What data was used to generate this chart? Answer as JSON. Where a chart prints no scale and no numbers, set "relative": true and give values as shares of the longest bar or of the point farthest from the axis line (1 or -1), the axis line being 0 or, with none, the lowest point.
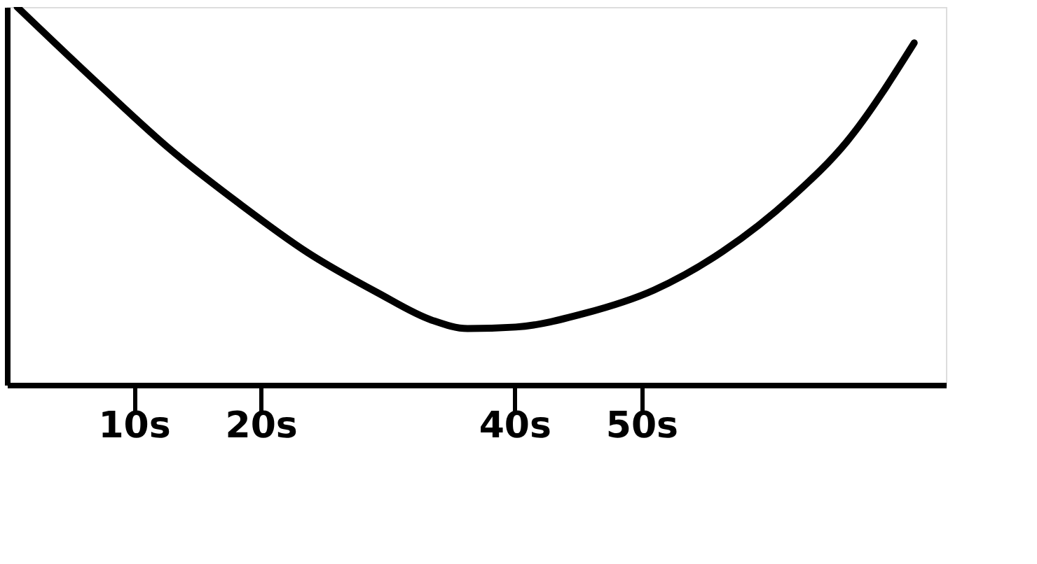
{
  "chart_data": {
    "type": "line",
    "relative": true,
    "x": [
      0.8,
      7.4,
      12.8,
      18.3,
      23.7,
      29.2,
      33.5,
      36.3,
      40.1,
      45.5,
      51.0,
      56.4,
      61.9,
      66.2,
      71.5
    ],
    "series": [
      {
        "color": "#000000",
        "values": [
          1.0,
          0.79,
          0.625,
          0.48,
          0.35,
          0.244,
          0.171,
          0.149,
          0.153,
          0.189,
          0.251,
          0.353,
          0.498,
          0.644,
          0.905
        ]
      }
    ],
    "xlim": [
      0,
      74
    ],
    "xticks": [
      {
        "value": 10,
        "label": "10s"
      },
      {
        "value": 20,
        "label": "20s"
      },
      {
        "value": 40,
        "label": "40s"
      },
      {
        "value": 50,
        "label": "50s"
      }
    ],
    "tick_labels": "x",
    "grid": false,
    "marker": "none",
    "line_style": "solid"
  }
}
